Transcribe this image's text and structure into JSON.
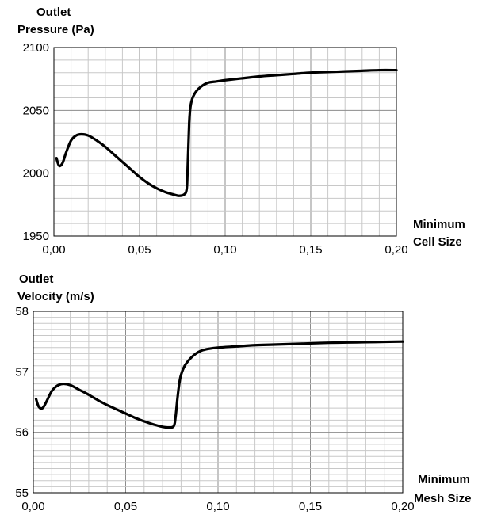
{
  "chart_data": [
    {
      "type": "line",
      "ylabel_line1": "Outlet",
      "ylabel_line2": "Pressure (Pa)",
      "xlabel_line1": "Minimum",
      "xlabel_line2": "Cell Size",
      "xlim": [
        0,
        0.2
      ],
      "ylim": [
        1950,
        2100
      ],
      "grid": true,
      "x_ticks": [
        0,
        0.05,
        0.1,
        0.15,
        0.2
      ],
      "x_tick_labels": [
        "0,00",
        "0,05",
        "0,10",
        "0,15",
        "0,20"
      ],
      "y_ticks": [
        1950,
        2000,
        2050,
        2100
      ],
      "y_tick_labels": [
        "1950",
        "2000",
        "2050",
        "2100"
      ],
      "series": [
        {
          "x": [
            0.0015,
            0.003,
            0.005,
            0.007,
            0.01,
            0.013,
            0.016,
            0.02,
            0.025,
            0.03,
            0.035,
            0.04,
            0.045,
            0.05,
            0.055,
            0.06,
            0.065,
            0.07,
            0.073,
            0.076,
            0.0775,
            0.078,
            0.0785,
            0.079,
            0.0795,
            0.08,
            0.081,
            0.083,
            0.086,
            0.09,
            0.095,
            0.1,
            0.11,
            0.12,
            0.13,
            0.14,
            0.15,
            0.16,
            0.17,
            0.18,
            0.19,
            0.2
          ],
          "y": [
            2012,
            2006,
            2008,
            2016,
            2026,
            2030,
            2031,
            2030,
            2026,
            2021,
            2015,
            2009,
            2003,
            1997,
            1992,
            1988,
            1985,
            1983,
            1982,
            1983,
            1987,
            2000,
            2020,
            2040,
            2050,
            2055,
            2060,
            2065,
            2069,
            2072,
            2073,
            2074,
            2075.5,
            2077,
            2078,
            2079,
            2080,
            2080.5,
            2081,
            2081.5,
            2082,
            2082
          ]
        }
      ]
    },
    {
      "type": "line",
      "ylabel_line1": "Outlet",
      "ylabel_line2": "Velocity (m/s)",
      "xlabel_line1": "Minimum",
      "xlabel_line2": "Mesh Size",
      "xlim": [
        0,
        0.2
      ],
      "ylim": [
        55,
        58
      ],
      "grid": true,
      "x_ticks": [
        0,
        0.05,
        0.1,
        0.15,
        0.2
      ],
      "x_tick_labels": [
        "0,00",
        "0,05",
        "0,10",
        "0,15",
        "0,20"
      ],
      "y_ticks": [
        55,
        56,
        57,
        58
      ],
      "y_tick_labels": [
        "55",
        "56",
        "57",
        "58"
      ],
      "series": [
        {
          "x": [
            0.0015,
            0.003,
            0.005,
            0.007,
            0.01,
            0.013,
            0.016,
            0.02,
            0.025,
            0.03,
            0.035,
            0.04,
            0.045,
            0.05,
            0.055,
            0.06,
            0.065,
            0.07,
            0.073,
            0.076,
            0.077,
            0.078,
            0.079,
            0.08,
            0.082,
            0.085,
            0.088,
            0.091,
            0.095,
            0.1,
            0.11,
            0.12,
            0.13,
            0.14,
            0.15,
            0.16,
            0.17,
            0.18,
            0.19,
            0.2
          ],
          "y": [
            56.55,
            56.42,
            56.4,
            56.5,
            56.68,
            56.77,
            56.8,
            56.78,
            56.7,
            56.62,
            56.53,
            56.45,
            56.38,
            56.31,
            56.24,
            56.18,
            56.13,
            56.09,
            56.08,
            56.1,
            56.25,
            56.55,
            56.8,
            56.95,
            57.1,
            57.22,
            57.3,
            57.35,
            57.38,
            57.4,
            57.42,
            57.44,
            57.45,
            57.46,
            57.47,
            57.48,
            57.485,
            57.49,
            57.495,
            57.5
          ]
        }
      ]
    }
  ]
}
